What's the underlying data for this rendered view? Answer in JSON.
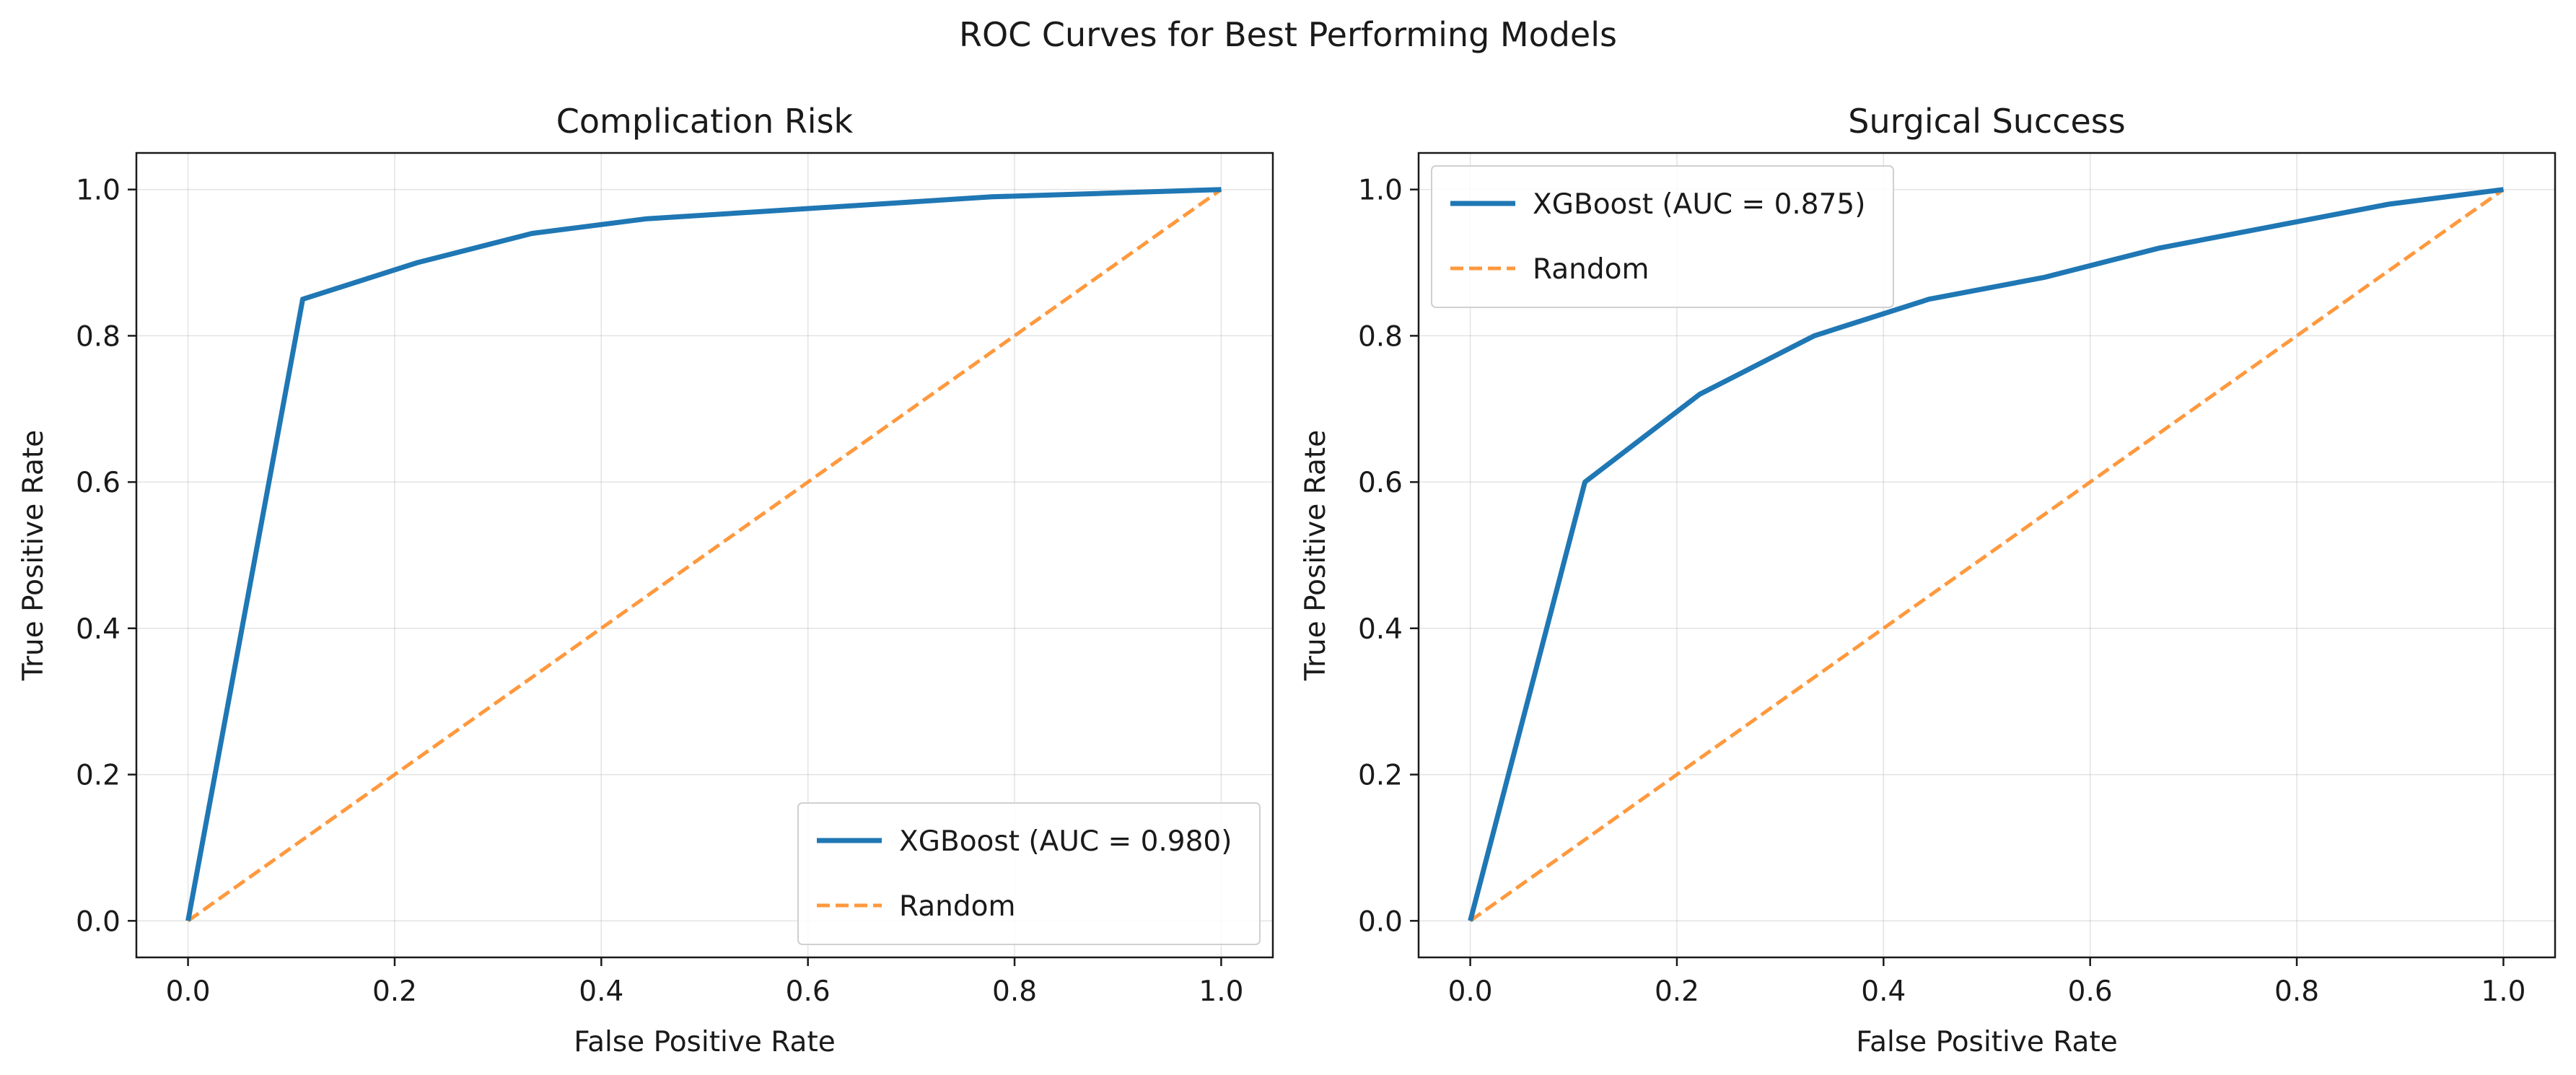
{
  "figure": {
    "suptitle": "ROC Curves for Best Performing Models"
  },
  "colors": {
    "model_line": "#1f77b4",
    "random_line": "#ff7f0e"
  },
  "chart_data": [
    {
      "type": "line",
      "title": "Complication Risk",
      "xlabel": "False Positive Rate",
      "ylabel": "True Positive Rate",
      "xlim": [
        -0.05,
        1.05
      ],
      "ylim": [
        -0.05,
        1.05
      ],
      "xticks": [
        0.0,
        0.2,
        0.4,
        0.6,
        0.8,
        1.0
      ],
      "yticks": [
        0.0,
        0.2,
        0.4,
        0.6,
        0.8,
        1.0
      ],
      "xtick_labels": [
        "0.0",
        "0.2",
        "0.4",
        "0.6",
        "0.8",
        "1.0"
      ],
      "ytick_labels": [
        "0.0",
        "0.2",
        "0.4",
        "0.6",
        "0.8",
        "1.0"
      ],
      "grid": true,
      "legend_position": "lower-right",
      "series": [
        {
          "name": "XGBoost (AUC = 0.980)",
          "style": "solid",
          "x": [
            0.0,
            0.111,
            0.222,
            0.333,
            0.444,
            0.556,
            0.667,
            0.778,
            0.889,
            1.0
          ],
          "y": [
            0.0,
            0.85,
            0.9,
            0.94,
            0.96,
            0.97,
            0.98,
            0.99,
            0.995,
            1.0
          ]
        },
        {
          "name": "Random",
          "style": "dashed",
          "x": [
            0.0,
            1.0
          ],
          "y": [
            0.0,
            1.0
          ]
        }
      ]
    },
    {
      "type": "line",
      "title": "Surgical Success",
      "xlabel": "False Positive Rate",
      "ylabel": "True Positive Rate",
      "xlim": [
        -0.05,
        1.05
      ],
      "ylim": [
        -0.05,
        1.05
      ],
      "xticks": [
        0.0,
        0.2,
        0.4,
        0.6,
        0.8,
        1.0
      ],
      "yticks": [
        0.0,
        0.2,
        0.4,
        0.6,
        0.8,
        1.0
      ],
      "xtick_labels": [
        "0.0",
        "0.2",
        "0.4",
        "0.6",
        "0.8",
        "1.0"
      ],
      "ytick_labels": [
        "0.0",
        "0.2",
        "0.4",
        "0.6",
        "0.8",
        "1.0"
      ],
      "grid": true,
      "legend_position": "upper-left",
      "series": [
        {
          "name": "XGBoost (AUC = 0.875)",
          "style": "solid",
          "x": [
            0.0,
            0.111,
            0.222,
            0.333,
            0.444,
            0.556,
            0.667,
            0.778,
            0.889,
            1.0
          ],
          "y": [
            0.0,
            0.6,
            0.72,
            0.8,
            0.85,
            0.88,
            0.92,
            0.95,
            0.98,
            1.0
          ]
        },
        {
          "name": "Random",
          "style": "dashed",
          "x": [
            0.0,
            1.0
          ],
          "y": [
            0.0,
            1.0
          ]
        }
      ]
    }
  ]
}
